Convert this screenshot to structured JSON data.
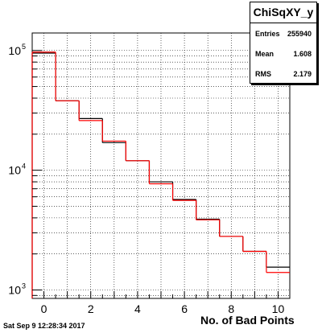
{
  "chart_data": {
    "type": "histogram",
    "title": "ChiSqXY_y",
    "xlabel": "No. of Bad Points",
    "ylabel": "",
    "xlim": [
      -0.5,
      10.5
    ],
    "ylim": [
      850,
      140000
    ],
    "yscale": "log",
    "grid": true,
    "xticks": [
      "0",
      "2",
      "4",
      "6",
      "8",
      "10"
    ],
    "yticks": [
      {
        "base": "10",
        "exp": "3",
        "value": 1000
      },
      {
        "base": "10",
        "exp": "4",
        "value": 10000
      },
      {
        "base": "10",
        "exp": "5",
        "value": 100000
      }
    ],
    "bins": [
      0,
      1,
      2,
      3,
      4,
      5,
      6,
      7,
      8,
      9,
      10
    ],
    "series": [
      {
        "color": "#000000",
        "values": [
          95000,
          38000,
          27000,
          17000,
          12000,
          8000,
          5700,
          3900,
          2800,
          2100,
          1550
        ]
      },
      {
        "color": "#ff0000",
        "values": [
          97000,
          38000,
          26000,
          17500,
          12000,
          7700,
          5600,
          3850,
          2800,
          2100,
          1400
        ]
      }
    ]
  },
  "stats": {
    "title": "ChiSqXY_y",
    "rows": [
      {
        "label": "Entries",
        "value": "255940"
      },
      {
        "label": "Mean",
        "value": "1.608"
      },
      {
        "label": "RMS",
        "value": "2.179"
      }
    ]
  },
  "footer": "Sat Sep  9 12:28:34 2017"
}
